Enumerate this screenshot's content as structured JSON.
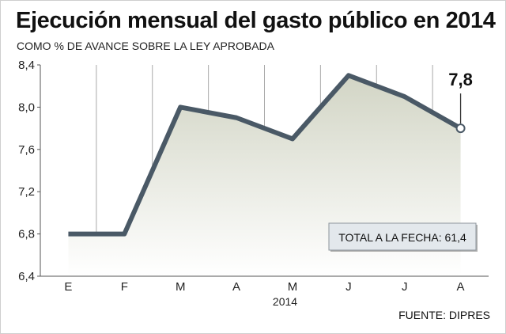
{
  "title": "Ejecución mensual del gasto público en 2014",
  "subtitle": "COMO % DE AVANCE SOBRE LA LEY APROBADA",
  "source": "FUENTE: DIPRES",
  "total_label": "TOTAL A LA FECHA: 61,4",
  "colors": {
    "line": "#4a5966",
    "area_top": "#d2d5c5",
    "area_bottom": "#ffffff",
    "background": "#ffffff",
    "grid": "#a9a9a9",
    "axis": "#555555"
  },
  "chart_data": {
    "type": "area",
    "title": "Ejecución mensual del gasto público en 2014",
    "subtitle": "COMO % DE AVANCE SOBRE LA LEY APROBADA",
    "xlabel": "2014",
    "ylabel": "",
    "categories": [
      "E",
      "F",
      "M",
      "A",
      "M",
      "J",
      "J",
      "A"
    ],
    "series": [
      {
        "values": [
          6.8,
          6.8,
          8.0,
          7.9,
          7.7,
          8.3,
          8.1,
          7.8
        ]
      }
    ],
    "ylim": [
      6.4,
      8.4
    ],
    "yticks": [
      6.4,
      6.8,
      7.2,
      7.6,
      8.0,
      8.4
    ],
    "ytick_labels": [
      "6,4",
      "6,8",
      "7,2",
      "7,6",
      "8,0",
      "8,4"
    ],
    "grid": "vertical",
    "annotations": [
      {
        "category_index": 7,
        "text": "7,8"
      }
    ]
  }
}
